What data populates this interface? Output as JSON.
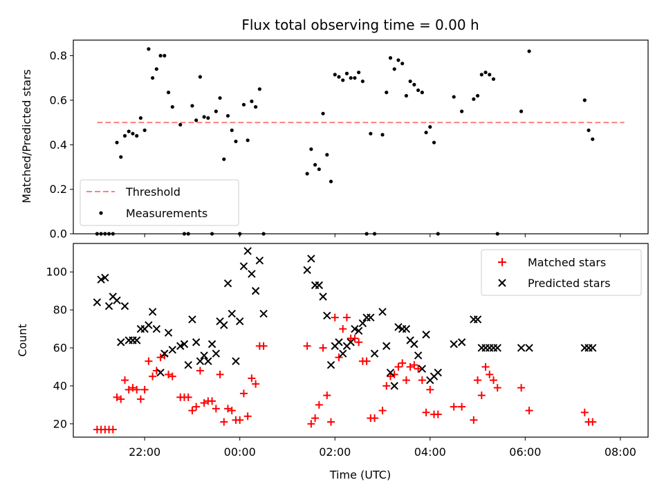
{
  "chart_data": [
    {
      "type": "scatter",
      "title": "Flux total observing time = 0.00 h",
      "xlabel": "",
      "ylabel": "Matched/Predicted stars",
      "xlim": [
        "20:30",
        "08:35"
      ],
      "ylim": [
        0,
        0.87
      ],
      "xticks": [
        "22:00",
        "00:00",
        "02:00",
        "04:00",
        "06:00",
        "08:00"
      ],
      "yticks": [
        "0.0",
        "0.2",
        "0.4",
        "0.6",
        "0.8"
      ],
      "grid": false,
      "legend": {
        "position": "lower-left"
      },
      "colors": {
        "threshold": "#ff7f7f",
        "measurements": "#000000"
      },
      "series": [
        {
          "name": "Threshold",
          "kind": "dashed-line",
          "x": [
            "21:00",
            "08:05"
          ],
          "values": [
            0.5,
            0.5
          ]
        },
        {
          "name": "Measurements",
          "kind": "points",
          "x": [
            "21:00",
            "21:05",
            "21:10",
            "21:15",
            "21:20",
            "21:25",
            "21:30",
            "21:35",
            "21:40",
            "21:45",
            "21:50",
            "21:55",
            "22:00",
            "22:05",
            "22:10",
            "22:15",
            "22:20",
            "22:25",
            "22:30",
            "22:35",
            "22:45",
            "22:50",
            "22:55",
            "23:00",
            "23:05",
            "23:10",
            "23:15",
            "23:20",
            "23:25",
            "23:30",
            "23:35",
            "23:40",
            "23:45",
            "23:50",
            "23:55",
            "00:00",
            "00:05",
            "00:10",
            "00:15",
            "00:20",
            "00:25",
            "00:30",
            "01:25",
            "01:30",
            "01:35",
            "01:40",
            "01:45",
            "01:50",
            "01:55",
            "02:00",
            "02:05",
            "02:10",
            "02:15",
            "02:20",
            "02:25",
            "02:30",
            "02:35",
            "02:40",
            "02:45",
            "02:50",
            "03:00",
            "03:05",
            "03:10",
            "03:15",
            "03:20",
            "03:25",
            "03:30",
            "03:35",
            "03:40",
            "03:45",
            "03:50",
            "03:55",
            "04:00",
            "04:05",
            "04:10",
            "04:30",
            "04:40",
            "04:55",
            "05:00",
            "05:05",
            "05:10",
            "05:15",
            "05:20",
            "05:25",
            "05:55",
            "06:05",
            "07:15",
            "07:20",
            "07:25"
          ],
          "values": [
            0.0,
            0.0,
            0.0,
            0.0,
            0.0,
            0.41,
            0.345,
            0.44,
            0.46,
            0.45,
            0.44,
            0.52,
            0.465,
            0.83,
            0.7,
            0.74,
            0.8,
            0.8,
            0.635,
            0.57,
            0.49,
            0.0,
            0.0,
            0.575,
            0.51,
            0.705,
            0.525,
            0.52,
            0.0,
            0.55,
            0.61,
            0.335,
            0.53,
            0.465,
            0.415,
            0.0,
            0.58,
            0.42,
            0.595,
            0.57,
            0.65,
            0.0,
            0.27,
            0.38,
            0.31,
            0.29,
            0.54,
            0.355,
            0.235,
            0.715,
            0.705,
            0.69,
            0.72,
            0.7,
            0.7,
            0.725,
            0.685,
            0.0,
            0.45,
            0.0,
            0.445,
            0.635,
            0.79,
            0.74,
            0.78,
            0.765,
            0.62,
            0.685,
            0.67,
            0.645,
            0.635,
            0.455,
            0.48,
            0.41,
            0.0,
            0.615,
            0.55,
            0.605,
            0.62,
            0.715,
            0.725,
            0.715,
            0.695,
            0.0,
            0.55,
            0.82,
            0.6,
            0.465,
            0.425
          ]
        }
      ]
    },
    {
      "type": "scatter",
      "title": "",
      "xlabel": "Time (UTC)",
      "ylabel": "Count",
      "xlim": [
        "20:30",
        "08:35"
      ],
      "ylim": [
        13,
        115
      ],
      "xticks": [
        "22:00",
        "00:00",
        "02:00",
        "04:00",
        "06:00",
        "08:00"
      ],
      "yticks": [
        "20",
        "40",
        "60",
        "80",
        "100"
      ],
      "grid": false,
      "legend": {
        "position": "top-right"
      },
      "colors": {
        "matched": "#ff0000",
        "predicted": "#000000"
      },
      "series": [
        {
          "name": "Matched stars",
          "marker": "plus",
          "x": [
            "21:00",
            "21:05",
            "21:10",
            "21:15",
            "21:20",
            "21:25",
            "21:30",
            "21:35",
            "21:40",
            "21:45",
            "21:50",
            "21:55",
            "22:00",
            "22:05",
            "22:10",
            "22:15",
            "22:20",
            "22:25",
            "22:30",
            "22:35",
            "22:45",
            "22:50",
            "22:55",
            "23:00",
            "23:05",
            "23:10",
            "23:15",
            "23:20",
            "23:25",
            "23:30",
            "23:35",
            "23:40",
            "23:45",
            "23:50",
            "23:55",
            "00:00",
            "00:05",
            "00:10",
            "00:15",
            "00:20",
            "00:25",
            "00:30",
            "01:25",
            "01:30",
            "01:35",
            "01:40",
            "01:45",
            "01:50",
            "01:55",
            "02:00",
            "02:05",
            "02:10",
            "02:15",
            "02:20",
            "02:25",
            "02:30",
            "02:35",
            "02:40",
            "02:45",
            "02:50",
            "03:00",
            "03:05",
            "03:10",
            "03:15",
            "03:20",
            "03:25",
            "03:30",
            "03:35",
            "03:40",
            "03:45",
            "03:50",
            "03:55",
            "04:00",
            "04:05",
            "04:10",
            "04:30",
            "04:40",
            "04:55",
            "05:00",
            "05:05",
            "05:10",
            "05:15",
            "05:20",
            "05:25",
            "05:55",
            "06:05",
            "07:15",
            "07:20",
            "07:25"
          ],
          "values": [
            17,
            17,
            17,
            17,
            17,
            34,
            33,
            43,
            38,
            39,
            38,
            33,
            38,
            53,
            45,
            48,
            55,
            56,
            46,
            45,
            34,
            34,
            34,
            27,
            29,
            48,
            31,
            32,
            32,
            28,
            46,
            21,
            28,
            27,
            22,
            22,
            36,
            24,
            44,
            41,
            61,
            61,
            61,
            20,
            23,
            30,
            60,
            35,
            21,
            76,
            55,
            70,
            76,
            65,
            65,
            63,
            53,
            53,
            23,
            23,
            27,
            40,
            45,
            46,
            50,
            52,
            43,
            50,
            51,
            49,
            43,
            26,
            38,
            25,
            25,
            29,
            29,
            22,
            43,
            35,
            50,
            46,
            43,
            39,
            39,
            27,
            26,
            21,
            21
          ]
        },
        {
          "name": "Predicted stars",
          "marker": "x",
          "x": [
            "21:00",
            "21:05",
            "21:10",
            "21:15",
            "21:20",
            "21:25",
            "21:30",
            "21:35",
            "21:40",
            "21:45",
            "21:50",
            "21:55",
            "22:00",
            "22:05",
            "22:10",
            "22:15",
            "22:20",
            "22:25",
            "22:30",
            "22:35",
            "22:45",
            "22:50",
            "22:55",
            "23:00",
            "23:05",
            "23:10",
            "23:15",
            "23:20",
            "23:25",
            "23:30",
            "23:35",
            "23:40",
            "23:45",
            "23:50",
            "23:55",
            "00:00",
            "00:05",
            "00:10",
            "00:15",
            "00:20",
            "00:25",
            "00:30",
            "01:25",
            "01:30",
            "01:35",
            "01:40",
            "01:45",
            "01:50",
            "01:55",
            "02:00",
            "02:05",
            "02:10",
            "02:15",
            "02:20",
            "02:25",
            "02:30",
            "02:35",
            "02:40",
            "02:45",
            "02:50",
            "03:00",
            "03:05",
            "03:10",
            "03:15",
            "03:20",
            "03:25",
            "03:30",
            "03:35",
            "03:40",
            "03:45",
            "03:50",
            "03:55",
            "04:00",
            "04:05",
            "04:10",
            "04:30",
            "04:40",
            "04:55",
            "05:00",
            "05:05",
            "05:10",
            "05:15",
            "05:20",
            "05:25",
            "05:55",
            "06:05",
            "07:15",
            "07:20",
            "07:25"
          ],
          "values": [
            84,
            96,
            97,
            82,
            87,
            85,
            63,
            82,
            64,
            64,
            64,
            70,
            70,
            72,
            79,
            70,
            47,
            57,
            68,
            59,
            61,
            62,
            51,
            75,
            63,
            53,
            56,
            53,
            62,
            57,
            74,
            72,
            94,
            78,
            53,
            74,
            103,
            111,
            99,
            90,
            106,
            78,
            101,
            107,
            93,
            93,
            87,
            77,
            51,
            61,
            63,
            57,
            61,
            63,
            70,
            69,
            73,
            76,
            76,
            57,
            79,
            61,
            47,
            40,
            71,
            70,
            70,
            64,
            62,
            56,
            49,
            67,
            43,
            45,
            47,
            62,
            63,
            75,
            75,
            60,
            60,
            60,
            60,
            60,
            60,
            60,
            60,
            60,
            60
          ]
        }
      ]
    }
  ]
}
